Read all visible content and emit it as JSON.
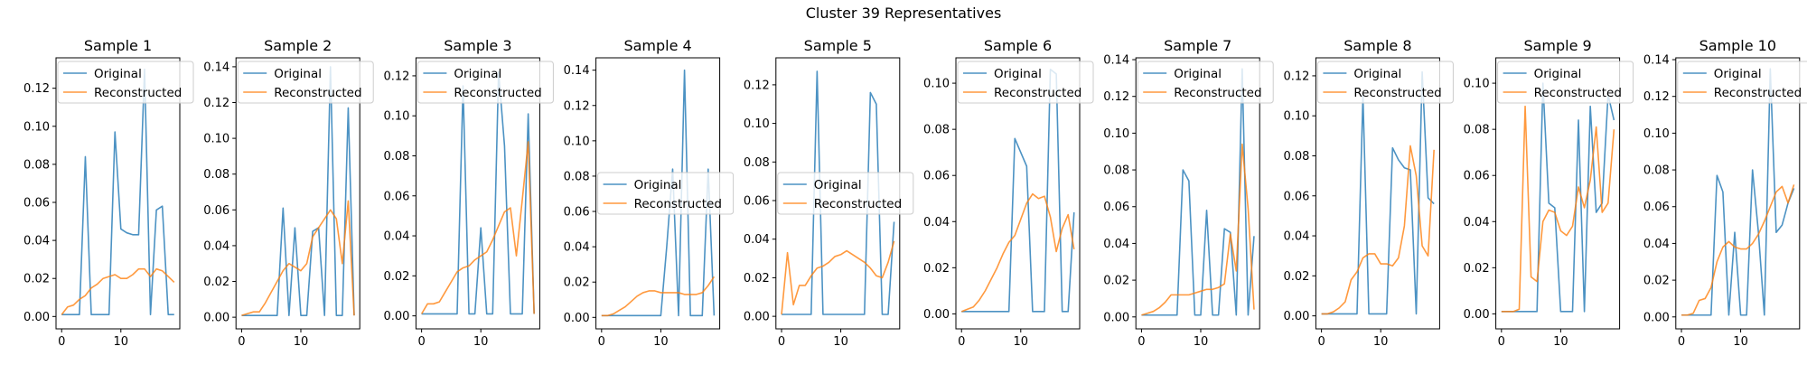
{
  "figure": {
    "title": "Cluster 39 Representatives"
  },
  "colors": {
    "original": "#1f77b4",
    "reconstructed": "#ff7f0e"
  },
  "legend": {
    "labels": [
      "Original",
      "Reconstructed"
    ]
  },
  "chart_data": [
    {
      "type": "line",
      "title": "Sample 1",
      "legend_loc": "upper left",
      "xlim": [
        -0.95,
        19.95
      ],
      "ylim": [
        -0.0065,
        0.136
      ],
      "xticks": [
        0,
        10
      ],
      "yticks": [
        0.0,
        0.02,
        0.04,
        0.06,
        0.08,
        0.1,
        0.12
      ],
      "ytick_labels": [
        "0.00",
        "0.02",
        "0.04",
        "0.06",
        "0.08",
        "0.10",
        "0.12"
      ],
      "series": [
        {
          "name": "Original",
          "values": [
            0.001,
            0.001,
            0.001,
            0.001,
            0.084,
            0.001,
            0.001,
            0.001,
            0.001,
            0.097,
            0.046,
            0.044,
            0.043,
            0.043,
            0.13,
            0.001,
            0.056,
            0.058,
            0.001,
            0.001
          ]
        },
        {
          "name": "Reconstructed",
          "values": [
            0.001,
            0.005,
            0.006,
            0.009,
            0.011,
            0.015,
            0.017,
            0.02,
            0.021,
            0.022,
            0.02,
            0.02,
            0.022,
            0.025,
            0.025,
            0.021,
            0.025,
            0.024,
            0.021,
            0.018
          ]
        }
      ]
    },
    {
      "type": "line",
      "title": "Sample 2",
      "legend_loc": "upper left",
      "xlim": [
        -0.95,
        19.95
      ],
      "ylim": [
        -0.0065,
        0.145
      ],
      "xticks": [
        0,
        10
      ],
      "yticks": [
        0.0,
        0.02,
        0.04,
        0.06,
        0.08,
        0.1,
        0.12,
        0.14
      ],
      "ytick_labels": [
        "0.00",
        "0.02",
        "0.04",
        "0.06",
        "0.08",
        "0.10",
        "0.12",
        "0.14"
      ],
      "series": [
        {
          "name": "Original",
          "values": [
            0.001,
            0.001,
            0.001,
            0.001,
            0.001,
            0.001,
            0.001,
            0.061,
            0.001,
            0.05,
            0.001,
            0.001,
            0.048,
            0.05,
            0.001,
            0.14,
            0.001,
            0.001,
            0.117,
            0.001
          ]
        },
        {
          "name": "Reconstructed",
          "values": [
            0.001,
            0.002,
            0.003,
            0.003,
            0.008,
            0.014,
            0.02,
            0.026,
            0.03,
            0.028,
            0.026,
            0.03,
            0.045,
            0.05,
            0.055,
            0.06,
            0.055,
            0.03,
            0.065,
            0.001
          ]
        }
      ]
    },
    {
      "type": "line",
      "title": "Sample 3",
      "legend_loc": "upper left",
      "xlim": [
        -0.95,
        19.95
      ],
      "ylim": [
        -0.0065,
        0.129
      ],
      "xticks": [
        0,
        10
      ],
      "yticks": [
        0.0,
        0.02,
        0.04,
        0.06,
        0.08,
        0.1,
        0.12
      ],
      "ytick_labels": [
        "0.00",
        "0.02",
        "0.04",
        "0.06",
        "0.08",
        "0.10",
        "0.12"
      ],
      "series": [
        {
          "name": "Original",
          "values": [
            0.001,
            0.001,
            0.001,
            0.001,
            0.001,
            0.001,
            0.001,
            0.115,
            0.001,
            0.001,
            0.044,
            0.001,
            0.001,
            0.122,
            0.085,
            0.001,
            0.001,
            0.001,
            0.101,
            0.001
          ]
        },
        {
          "name": "Reconstructed",
          "values": [
            0.001,
            0.006,
            0.006,
            0.007,
            0.012,
            0.017,
            0.022,
            0.024,
            0.025,
            0.028,
            0.03,
            0.032,
            0.038,
            0.045,
            0.052,
            0.054,
            0.03,
            0.058,
            0.087,
            0.001
          ]
        }
      ]
    },
    {
      "type": "line",
      "title": "Sample 4",
      "legend_loc": "center left",
      "xlim": [
        -0.95,
        19.95
      ],
      "ylim": [
        -0.0065,
        0.147
      ],
      "xticks": [
        0,
        10
      ],
      "yticks": [
        0.0,
        0.02,
        0.04,
        0.06,
        0.08,
        0.1,
        0.12,
        0.14
      ],
      "ytick_labels": [
        "0.00",
        "0.02",
        "0.04",
        "0.06",
        "0.08",
        "0.10",
        "0.12",
        "0.14"
      ],
      "series": [
        {
          "name": "Original",
          "values": [
            0.001,
            0.001,
            0.001,
            0.001,
            0.001,
            0.001,
            0.001,
            0.001,
            0.001,
            0.001,
            0.001,
            0.04,
            0.084,
            0.001,
            0.14,
            0.001,
            0.001,
            0.001,
            0.084,
            0.001
          ]
        },
        {
          "name": "Reconstructed",
          "values": [
            0.001,
            0.001,
            0.002,
            0.004,
            0.006,
            0.009,
            0.012,
            0.014,
            0.015,
            0.015,
            0.014,
            0.014,
            0.014,
            0.014,
            0.013,
            0.013,
            0.013,
            0.014,
            0.018,
            0.023
          ]
        }
      ]
    },
    {
      "type": "line",
      "title": "Sample 5",
      "legend_loc": "center left",
      "xlim": [
        -0.95,
        19.95
      ],
      "ylim": [
        -0.0065,
        0.134
      ],
      "xticks": [
        0,
        10
      ],
      "yticks": [
        0.0,
        0.02,
        0.04,
        0.06,
        0.08,
        0.1,
        0.12
      ],
      "ytick_labels": [
        "0.00",
        "0.02",
        "0.04",
        "0.06",
        "0.08",
        "0.10",
        "0.12"
      ],
      "series": [
        {
          "name": "Original",
          "values": [
            0.001,
            0.001,
            0.001,
            0.001,
            0.001,
            0.001,
            0.127,
            0.001,
            0.001,
            0.001,
            0.001,
            0.001,
            0.001,
            0.001,
            0.001,
            0.116,
            0.11,
            0.001,
            0.001,
            0.049
          ]
        },
        {
          "name": "Reconstructed",
          "values": [
            0.001,
            0.033,
            0.006,
            0.016,
            0.016,
            0.021,
            0.025,
            0.026,
            0.028,
            0.031,
            0.032,
            0.034,
            0.032,
            0.03,
            0.028,
            0.025,
            0.021,
            0.02,
            0.028,
            0.039
          ]
        }
      ]
    },
    {
      "type": "line",
      "title": "Sample 6",
      "legend_loc": "upper left",
      "xlim": [
        -0.95,
        19.95
      ],
      "ylim": [
        -0.0065,
        0.111
      ],
      "xticks": [
        0,
        10
      ],
      "yticks": [
        0.0,
        0.02,
        0.04,
        0.06,
        0.08,
        0.1
      ],
      "ytick_labels": [
        "0.00",
        "0.02",
        "0.04",
        "0.06",
        "0.08",
        "0.10"
      ],
      "series": [
        {
          "name": "Original",
          "values": [
            0.001,
            0.001,
            0.001,
            0.001,
            0.001,
            0.001,
            0.001,
            0.001,
            0.001,
            0.076,
            0.07,
            0.064,
            0.001,
            0.001,
            0.001,
            0.106,
            0.104,
            0.001,
            0.001,
            0.044
          ]
        },
        {
          "name": "Reconstructed",
          "values": [
            0.001,
            0.002,
            0.003,
            0.006,
            0.01,
            0.015,
            0.02,
            0.026,
            0.031,
            0.034,
            0.041,
            0.048,
            0.052,
            0.05,
            0.051,
            0.042,
            0.027,
            0.037,
            0.043,
            0.028
          ]
        }
      ]
    },
    {
      "type": "line",
      "title": "Sample 7",
      "legend_loc": "upper left",
      "xlim": [
        -0.95,
        19.95
      ],
      "ylim": [
        -0.0065,
        0.141
      ],
      "xticks": [
        0,
        10
      ],
      "yticks": [
        0.0,
        0.02,
        0.04,
        0.06,
        0.08,
        0.1,
        0.12,
        0.14
      ],
      "ytick_labels": [
        "0.00",
        "0.02",
        "0.04",
        "0.06",
        "0.08",
        "0.10",
        "0.12",
        "0.14"
      ],
      "series": [
        {
          "name": "Original",
          "values": [
            0.001,
            0.001,
            0.001,
            0.001,
            0.001,
            0.001,
            0.001,
            0.08,
            0.074,
            0.001,
            0.001,
            0.058,
            0.001,
            0.001,
            0.048,
            0.046,
            0.001,
            0.135,
            0.001,
            0.044
          ]
        },
        {
          "name": "Reconstructed",
          "values": [
            0.001,
            0.002,
            0.003,
            0.005,
            0.008,
            0.012,
            0.012,
            0.012,
            0.012,
            0.013,
            0.014,
            0.015,
            0.015,
            0.016,
            0.018,
            0.045,
            0.025,
            0.094,
            0.059,
            0.004
          ]
        }
      ]
    },
    {
      "type": "line",
      "title": "Sample 8",
      "legend_loc": "upper left",
      "xlim": [
        -0.95,
        19.95
      ],
      "ylim": [
        -0.0065,
        0.129
      ],
      "xticks": [
        0,
        10
      ],
      "yticks": [
        0.0,
        0.02,
        0.04,
        0.06,
        0.08,
        0.1,
        0.12
      ],
      "ytick_labels": [
        "0.00",
        "0.02",
        "0.04",
        "0.06",
        "0.08",
        "0.10",
        "0.12"
      ],
      "series": [
        {
          "name": "Original",
          "values": [
            0.001,
            0.001,
            0.001,
            0.001,
            0.001,
            0.001,
            0.001,
            0.11,
            0.001,
            0.001,
            0.001,
            0.001,
            0.084,
            0.078,
            0.074,
            0.073,
            0.001,
            0.122,
            0.059,
            0.056
          ]
        },
        {
          "name": "Reconstructed",
          "values": [
            0.001,
            0.001,
            0.002,
            0.004,
            0.007,
            0.018,
            0.022,
            0.029,
            0.031,
            0.031,
            0.026,
            0.026,
            0.025,
            0.029,
            0.045,
            0.085,
            0.07,
            0.035,
            0.03,
            0.083
          ]
        }
      ]
    },
    {
      "type": "line",
      "title": "Sample 9",
      "legend_loc": "upper left",
      "xlim": [
        -0.95,
        19.95
      ],
      "ylim": [
        -0.0065,
        0.111
      ],
      "xticks": [
        0,
        10
      ],
      "yticks": [
        0.0,
        0.02,
        0.04,
        0.06,
        0.08,
        0.1
      ],
      "ytick_labels": [
        "0.00",
        "0.02",
        "0.04",
        "0.06",
        "0.08",
        "0.10"
      ],
      "series": [
        {
          "name": "Original",
          "values": [
            0.001,
            0.001,
            0.001,
            0.001,
            0.001,
            0.001,
            0.001,
            0.1,
            0.048,
            0.046,
            0.001,
            0.001,
            0.001,
            0.084,
            0.001,
            0.09,
            0.044,
            0.048,
            0.095,
            0.084
          ]
        },
        {
          "name": "Reconstructed",
          "values": [
            0.001,
            0.001,
            0.001,
            0.002,
            0.09,
            0.016,
            0.014,
            0.04,
            0.045,
            0.044,
            0.036,
            0.034,
            0.038,
            0.055,
            0.046,
            0.058,
            0.081,
            0.044,
            0.048,
            0.08
          ]
        }
      ]
    },
    {
      "type": "line",
      "title": "Sample 10",
      "legend_loc": "upper left",
      "xlim": [
        -0.95,
        19.95
      ],
      "ylim": [
        -0.0065,
        0.141
      ],
      "xticks": [
        0,
        10
      ],
      "yticks": [
        0.0,
        0.02,
        0.04,
        0.06,
        0.08,
        0.1,
        0.12,
        0.14
      ],
      "ytick_labels": [
        "0.00",
        "0.02",
        "0.04",
        "0.06",
        "0.08",
        "0.10",
        "0.12",
        "0.14"
      ],
      "series": [
        {
          "name": "Original",
          "values": [
            0.001,
            0.001,
            0.001,
            0.001,
            0.001,
            0.001,
            0.077,
            0.068,
            0.001,
            0.046,
            0.001,
            0.001,
            0.08,
            0.046,
            0.001,
            0.135,
            0.046,
            0.05,
            0.062,
            0.07
          ]
        },
        {
          "name": "Reconstructed",
          "values": [
            0.001,
            0.001,
            0.002,
            0.009,
            0.01,
            0.016,
            0.03,
            0.038,
            0.041,
            0.038,
            0.037,
            0.037,
            0.04,
            0.045,
            0.052,
            0.06,
            0.068,
            0.071,
            0.062,
            0.072
          ]
        }
      ]
    }
  ]
}
